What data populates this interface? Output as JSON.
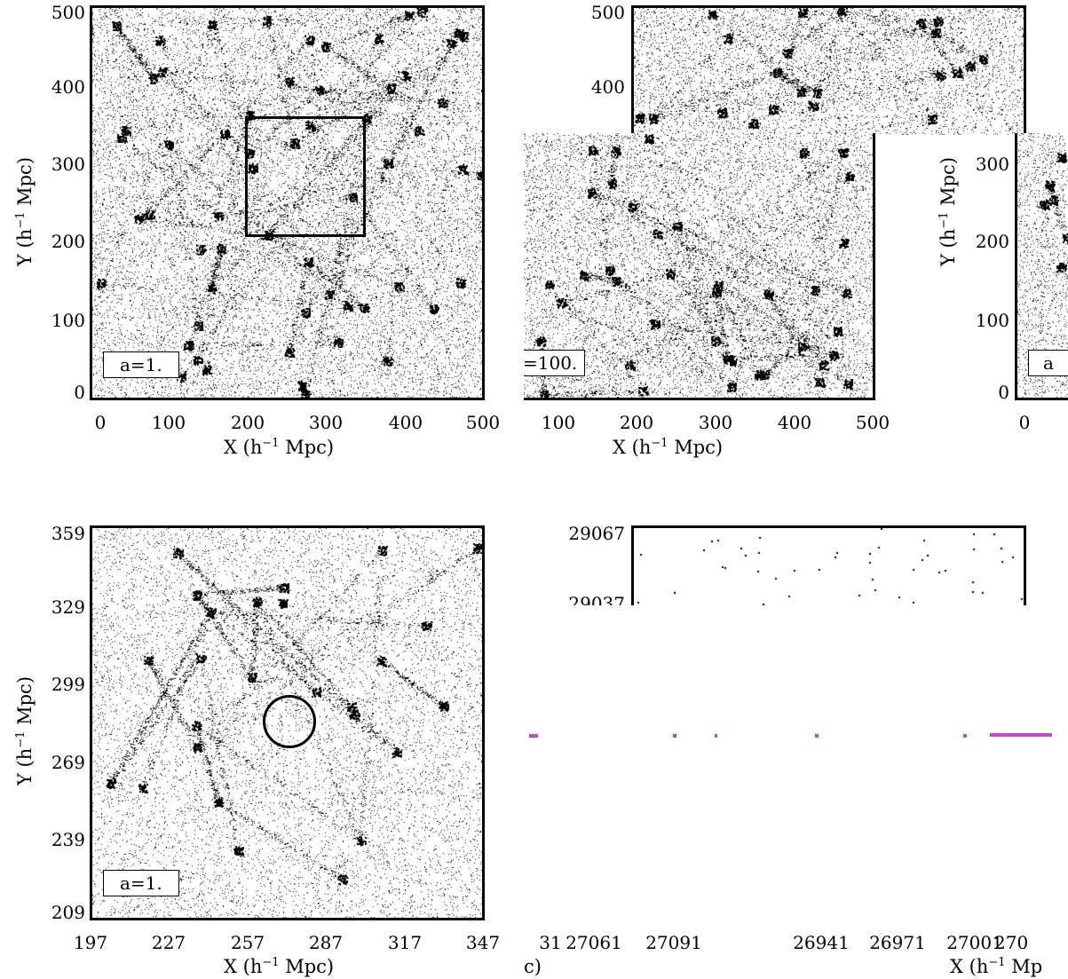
{
  "panels": {
    "top_left": {
      "y_ticks": [
        "500",
        "400",
        "300",
        "200",
        "100",
        "0"
      ],
      "x_ticks": [
        "0",
        "100",
        "200",
        "300",
        "400",
        "500"
      ],
      "xlabel_prefix": "X (h",
      "ylabel_prefix": "Y (h",
      "label_sup": "−1",
      "label_suffix": " Mpc)",
      "box_label": "a=1."
    },
    "top_middle": {
      "y_ticks": [
        "500",
        "400"
      ],
      "x_ticks": [
        "100",
        "200",
        "300",
        "400",
        "500"
      ],
      "xlabel_prefix": "X (h",
      "label_sup": "−1",
      "label_suffix": " Mpc)",
      "box_label": "=100."
    },
    "top_right": {
      "y_ticks": [
        "300",
        "200",
        "100",
        "0"
      ],
      "x_ticks": [
        "0"
      ],
      "ylabel_prefix": "Y (h",
      "label_sup": "−1",
      "label_suffix": " Mpc)",
      "box_label": "a"
    },
    "bottom_left": {
      "y_ticks": [
        "359",
        "329",
        "299",
        "269",
        "239",
        "209"
      ],
      "x_ticks": [
        "197",
        "227",
        "257",
        "287",
        "317",
        "347"
      ],
      "xlabel_prefix": "X (h",
      "ylabel_prefix": "Y (h",
      "label_sup": "−1",
      "label_suffix": " Mpc)",
      "box_label": "a=1."
    },
    "bottom_right": {
      "y_ticks": [
        "29067",
        "29037"
      ],
      "x_ticks": [
        "31",
        "27061",
        "27091",
        "26941",
        "26971",
        "27001",
        "270"
      ],
      "xlabel_fragment": "c)",
      "xlabel_prefix": "X (h",
      "label_sup": "−1",
      "label_suffix": " Mp"
    }
  },
  "colors": {
    "ink": "#000000",
    "artifact": "#cc44cc"
  }
}
